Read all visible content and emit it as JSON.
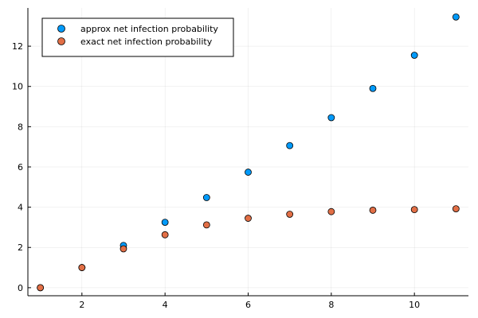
{
  "chart_data": {
    "type": "scatter",
    "title": "",
    "xlabel": "",
    "ylabel": "",
    "xlim": [
      0.7,
      11.3
    ],
    "ylim": [
      -0.4,
      13.9
    ],
    "x_ticks": [
      2,
      4,
      6,
      8,
      10
    ],
    "y_ticks": [
      0,
      2,
      4,
      6,
      8,
      10,
      12
    ],
    "grid": true,
    "legend_position": "top-left",
    "x": [
      1,
      2,
      3,
      4,
      5,
      6,
      7,
      8,
      9,
      10,
      11
    ],
    "series": [
      {
        "name": "approx net infection probability",
        "color": "#009AFA",
        "values": [
          0,
          1,
          2.1,
          3.25,
          4.48,
          5.74,
          7.06,
          8.45,
          9.9,
          11.55,
          13.45
        ]
      },
      {
        "name": "exact net infection probability",
        "color": "#E26F46",
        "values": [
          0,
          1,
          1.93,
          2.63,
          3.12,
          3.45,
          3.65,
          3.78,
          3.85,
          3.88,
          3.92
        ]
      }
    ]
  }
}
